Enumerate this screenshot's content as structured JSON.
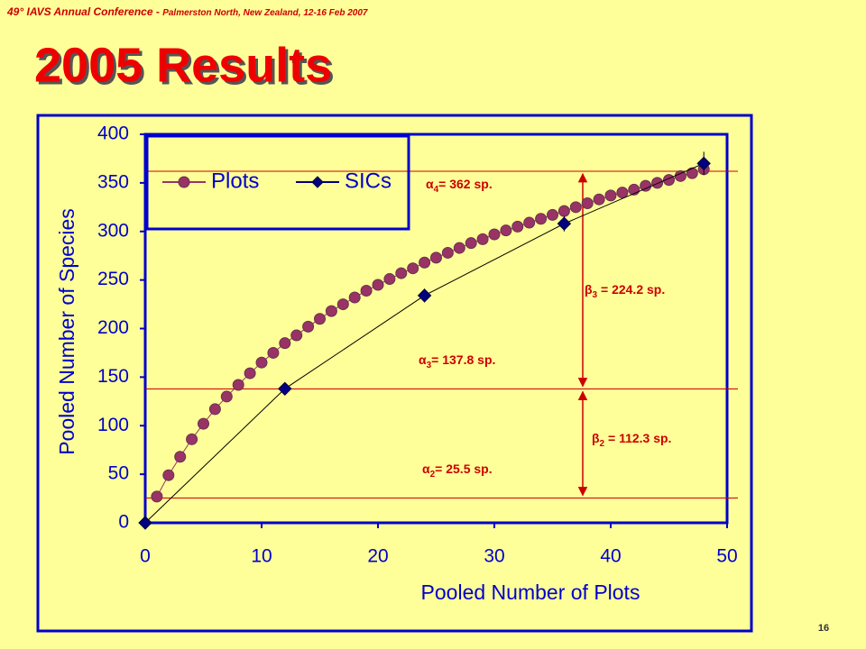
{
  "header": {
    "conference": "49° IAVS Annual Conference -",
    "location": "Palmerston North, New Zealand, 12-16 Feb 2007"
  },
  "slide_title": "2005 Results",
  "page_number": "16",
  "chart_data": {
    "type": "scatter",
    "xlabel": "Pooled Number of Plots",
    "ylabel": "Pooled Number of Species",
    "xlim": [
      0,
      50
    ],
    "xticks": [
      0,
      10,
      20,
      30,
      40,
      50
    ],
    "ylim": [
      0,
      400
    ],
    "yticks": [
      0,
      50,
      100,
      150,
      200,
      250,
      300,
      350,
      400
    ],
    "series": [
      {
        "name": "Plots",
        "color": "#993366",
        "marker": "circle",
        "x": [
          1,
          2,
          3,
          4,
          5,
          6,
          7,
          8,
          9,
          10,
          11,
          12,
          13,
          14,
          15,
          16,
          17,
          18,
          19,
          20,
          21,
          22,
          23,
          24,
          25,
          26,
          27,
          28,
          29,
          30,
          31,
          32,
          33,
          34,
          35,
          36,
          37,
          38,
          39,
          40,
          41,
          42,
          43,
          44,
          45,
          46,
          47,
          48
        ],
        "values": [
          27,
          49,
          68,
          86,
          102,
          117,
          130,
          142,
          154,
          165,
          175,
          185,
          193,
          202,
          210,
          218,
          225,
          232,
          239,
          245,
          251,
          257,
          262,
          268,
          273,
          278,
          283,
          288,
          292,
          297,
          301,
          305,
          309,
          313,
          317,
          321,
          325,
          329,
          333,
          337,
          340,
          343,
          347,
          350,
          353,
          357,
          360,
          364
        ]
      },
      {
        "name": "SICs",
        "color": "#000080",
        "marker": "diamond",
        "x": [
          0,
          12,
          24,
          36,
          48
        ],
        "values": [
          0,
          138,
          234,
          308,
          370
        ],
        "errors": [
          null,
          null,
          7,
          8,
          12
        ]
      }
    ],
    "hlines": [
      25.5,
      137.8,
      362
    ],
    "annotations": [
      {
        "symbol": "α",
        "sub": "4",
        "text": "= 362 sp."
      },
      {
        "symbol": "β",
        "sub": "3",
        "text": " = 224.2 sp."
      },
      {
        "symbol": "α",
        "sub": "3",
        "text": "= 137.8 sp."
      },
      {
        "symbol": "β",
        "sub": "2",
        "text": " = 112.3 sp."
      },
      {
        "symbol": "α",
        "sub": "2",
        "text": "= 25.5 sp."
      }
    ]
  }
}
